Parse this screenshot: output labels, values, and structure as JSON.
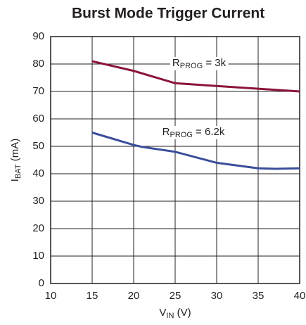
{
  "chart_data": {
    "type": "line",
    "title": "Burst Mode Trigger Current",
    "xlabel": {
      "main": "V",
      "sub": "IN",
      "rest": " (V)"
    },
    "ylabel": {
      "main": "I",
      "sub": "BAT",
      "rest": " (mA)"
    },
    "xlim": [
      10,
      40
    ],
    "xticks": [
      10,
      15,
      20,
      25,
      30,
      35,
      40
    ],
    "ylim": [
      0,
      90
    ],
    "yticks": [
      0,
      10,
      20,
      30,
      40,
      50,
      60,
      70,
      80,
      90
    ],
    "grid": true,
    "series": [
      {
        "label": {
          "main": "R",
          "sub": "PROG",
          "rest": " = 3k"
        },
        "color": "#8b1538",
        "x": [
          15,
          20,
          25,
          30,
          35,
          40
        ],
        "values": [
          81,
          77.5,
          73,
          72,
          71,
          70
        ]
      },
      {
        "label": {
          "main": "R",
          "sub": "PROG",
          "rest": " = 6.2k"
        },
        "color": "#3b4e9c",
        "x": [
          15,
          20,
          21,
          25,
          30,
          35,
          37,
          40
        ],
        "values": [
          55,
          50.5,
          49.8,
          48,
          44,
          42,
          41.8,
          42
        ]
      }
    ]
  }
}
